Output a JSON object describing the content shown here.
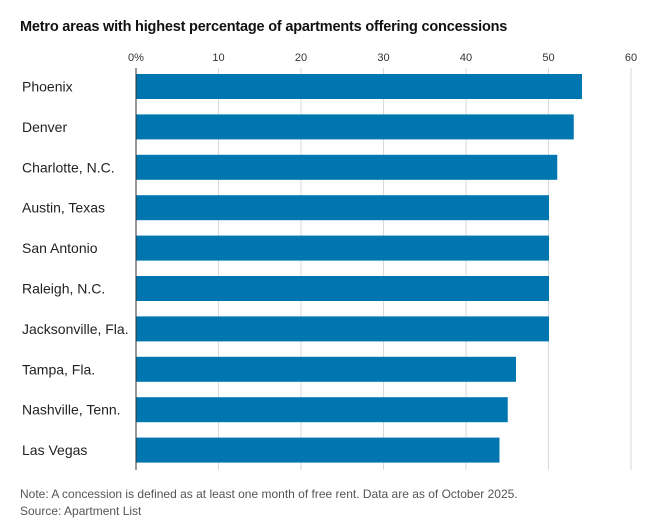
{
  "title": "Metro areas with highest percentage of apartments offering concessions",
  "note": "Note: A concession is defined as at least one month of free rent. Data are as of October 2025.",
  "source": "Source: Apartment List",
  "colors": {
    "bar": "#0076b0",
    "grid": "#d9d9d9",
    "axis": "#333333"
  },
  "chart_data": {
    "type": "bar",
    "orientation": "horizontal",
    "title": "Metro areas with highest percentage of apartments offering concessions",
    "categories": [
      "Phoenix",
      "Denver",
      "Charlotte, N.C.",
      "Austin, Texas",
      "San Antonio",
      "Raleigh, N.C.",
      "Jacksonville, Fla.",
      "Tampa, Fla.",
      "Nashville, Tenn.",
      "Las Vegas"
    ],
    "values": [
      54,
      53,
      51,
      50,
      50,
      50,
      50,
      46,
      45,
      44
    ],
    "xlim": [
      0,
      60
    ],
    "xticks": [
      0,
      10,
      20,
      30,
      40,
      50,
      60
    ],
    "xtick_labels": [
      "0%",
      "10",
      "20",
      "30",
      "40",
      "50",
      "60"
    ],
    "grid": true,
    "axis_position": "top"
  }
}
